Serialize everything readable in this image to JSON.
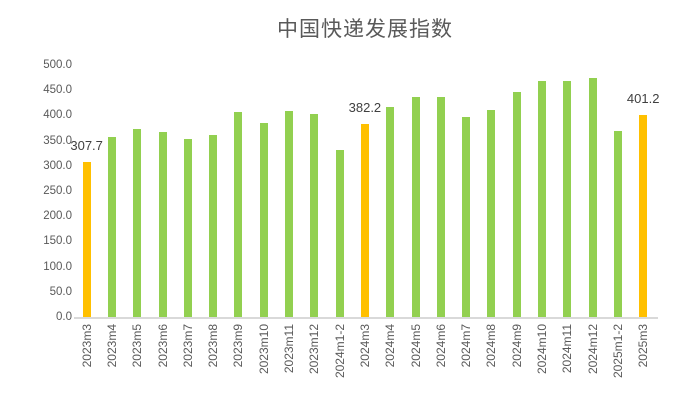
{
  "chart_data": {
    "type": "bar",
    "title": "中国快递发展指数",
    "xlabel": "",
    "ylabel": "",
    "categories": [
      "2023m3",
      "2023m4",
      "2023m5",
      "2023m6",
      "2023m7",
      "2023m8",
      "2023m9",
      "2023m10",
      "2023m11",
      "2023m12",
      "2024m1-2",
      "2024m3",
      "2024m4",
      "2024m5",
      "2024m6",
      "2024m7",
      "2024m8",
      "2024m9",
      "2024m10",
      "2024m11",
      "2024m12",
      "2025m1-2",
      "2025m3"
    ],
    "values": [
      307.7,
      358.0,
      372.5,
      368.0,
      354.0,
      362.0,
      406.5,
      385.0,
      408.0,
      402.0,
      331.0,
      382.2,
      417.0,
      436.5,
      437.0,
      396.0,
      410.0,
      446.0,
      468.0,
      467.5,
      474.0,
      368.5,
      401.2
    ],
    "highlight_indices": [
      0,
      11,
      22
    ],
    "data_labels": [
      {
        "index": 0,
        "text": "307.7"
      },
      {
        "index": 11,
        "text": "382.2"
      },
      {
        "index": 22,
        "text": "401.2"
      }
    ],
    "ylim": [
      0,
      500
    ],
    "ytick_step": 50,
    "ytick_labels": [
      "0.0",
      "50.0",
      "100.0",
      "150.0",
      "200.0",
      "250.0",
      "300.0",
      "350.0",
      "400.0",
      "450.0",
      "500.0"
    ],
    "grid": false,
    "legend": "none",
    "colors": {
      "bar_green": "#92D050",
      "bar_orange": "#FFC000",
      "title_text": "#595959",
      "axis_text": "#595959",
      "data_label_text": "#404040",
      "axis_line": "#D9D9D9",
      "background": "#FFFFFF"
    }
  }
}
